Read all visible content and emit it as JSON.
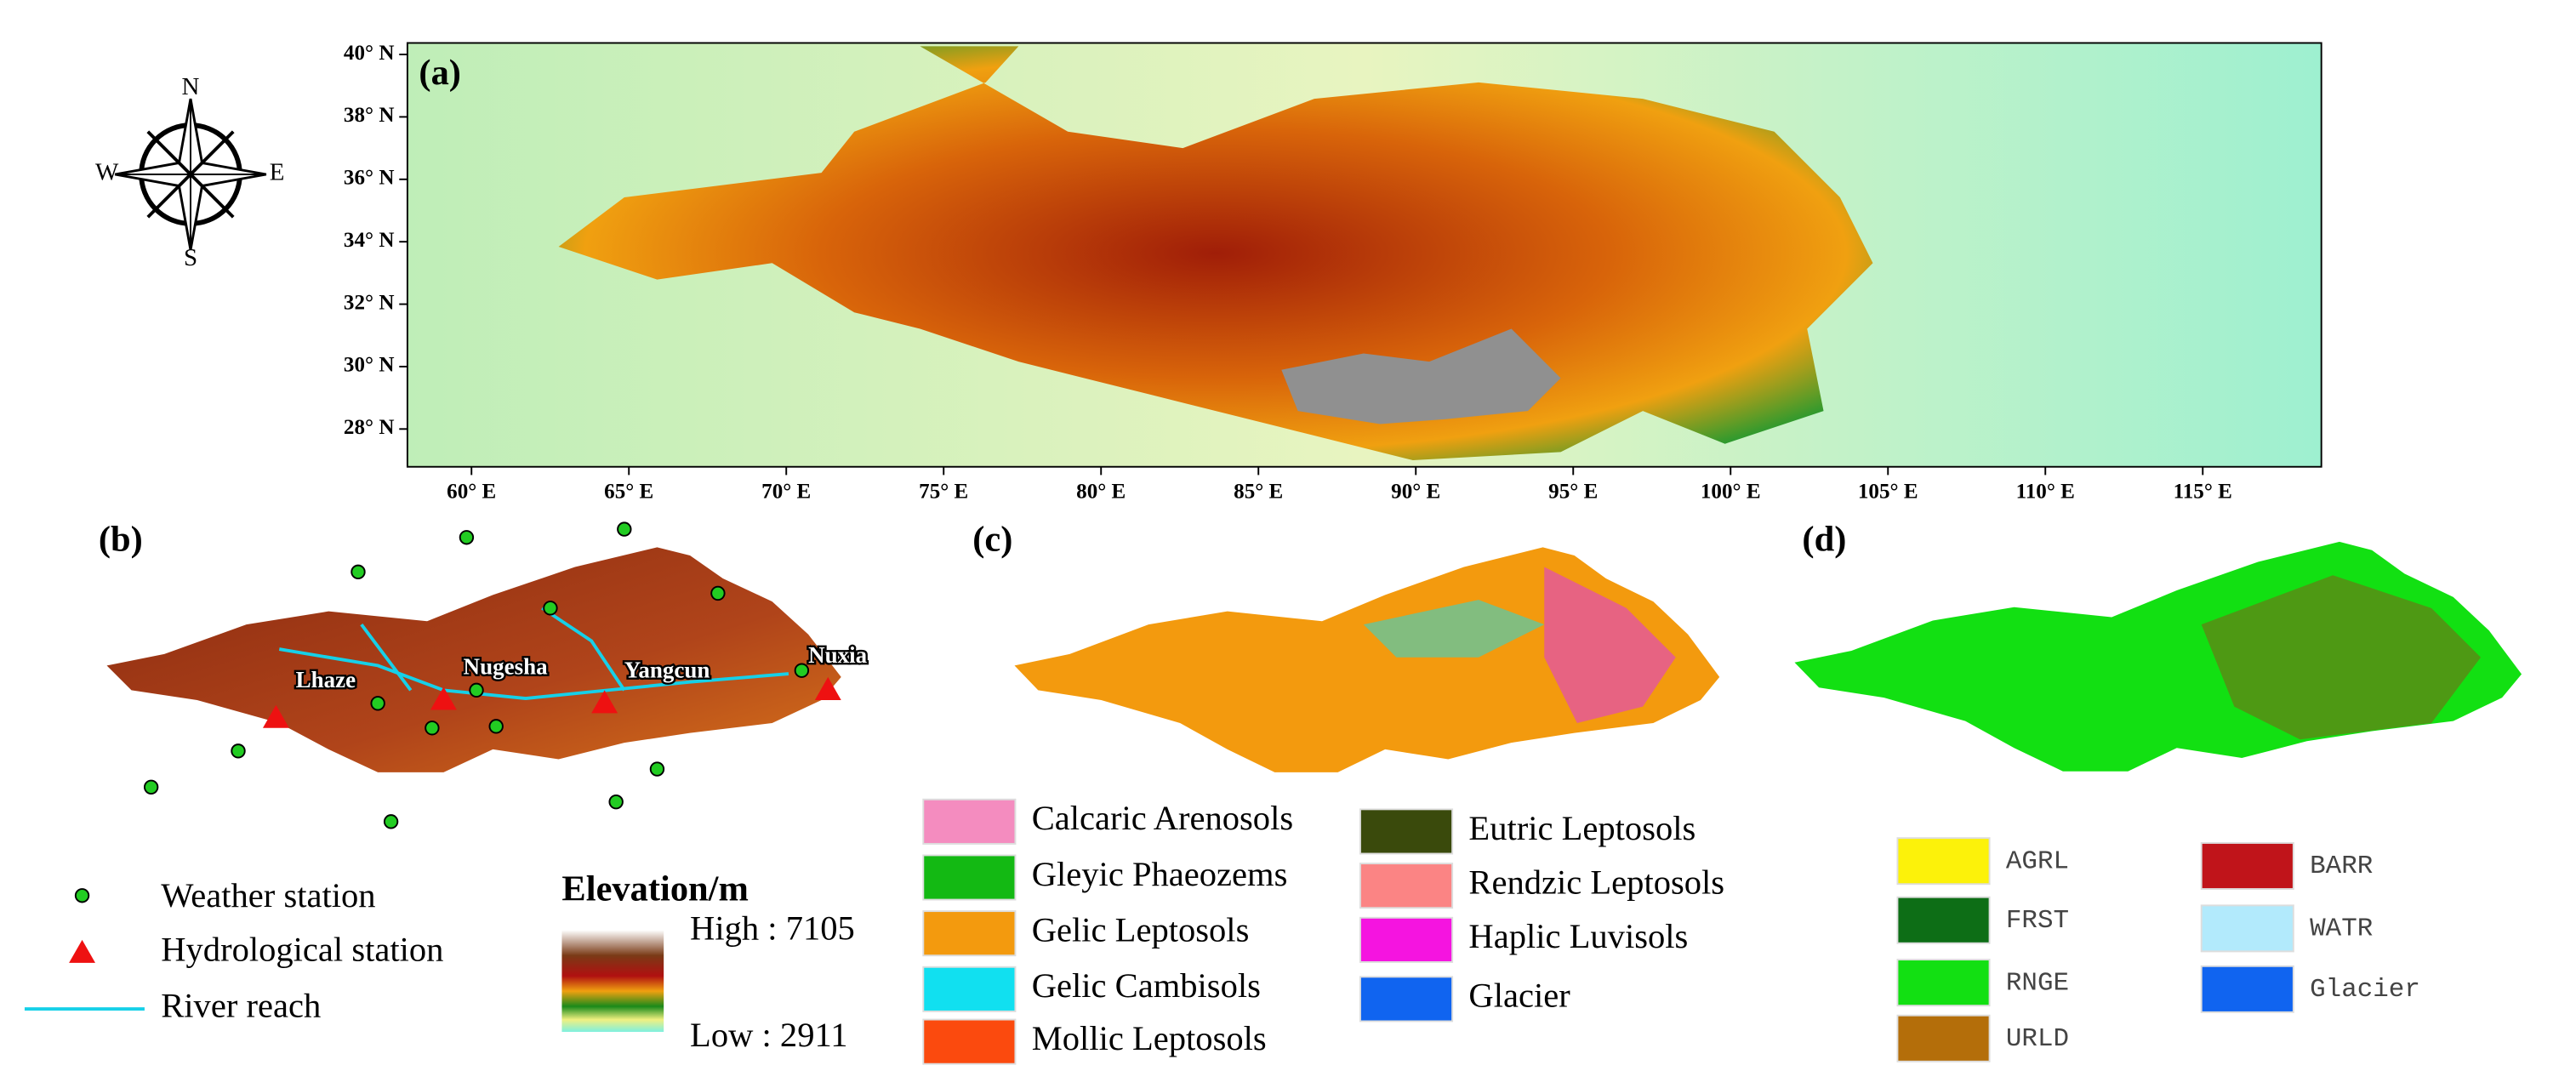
{
  "compass": {
    "n": "N",
    "s": "S",
    "e": "E",
    "w": "W"
  },
  "panel_a": {
    "label": "(a)",
    "lat_ticks": [
      "40° N",
      "38° N",
      "36° N",
      "34° N",
      "32° N",
      "30° N",
      "28° N"
    ],
    "lon_ticks": [
      "60° E",
      "65° E",
      "70° E",
      "75° E",
      "80° E",
      "85° E",
      "90° E",
      "95° E",
      "100° E",
      "105° E",
      "110° E",
      "115° E"
    ]
  },
  "panel_b": {
    "label": "(b)",
    "stations": [
      "Lhaze",
      "Nugesha",
      "Yangcun",
      "Nuxia"
    ],
    "legend": [
      "Weather station",
      "Hydrological station",
      "River reach"
    ],
    "elevation": {
      "title": "Elevation/m",
      "high": "High : 7105",
      "low": "Low : 2911"
    }
  },
  "panel_c": {
    "label": "(c)",
    "legend": [
      {
        "label": "Calcaric Arenosols",
        "color": "#f48cbf"
      },
      {
        "label": "Gleyic Phaeozems",
        "color": "#13b913"
      },
      {
        "label": "Gelic Leptosols",
        "color": "#f39a0e"
      },
      {
        "label": "Gelic Cambisols",
        "color": "#11e0f0"
      },
      {
        "label": "Mollic Leptosols",
        "color": "#fb4a0e"
      },
      {
        "label": "Eutric Leptosols",
        "color": "#3a4a0c"
      },
      {
        "label": "Rendzic Leptosols",
        "color": "#fb8484"
      },
      {
        "label": "Haplic Luvisols",
        "color": "#f514e0"
      },
      {
        "label": "Glacier",
        "color": "#1064f0"
      }
    ]
  },
  "panel_d": {
    "label": "(d)",
    "legend": [
      {
        "label": "AGRL",
        "color": "#fcf20a"
      },
      {
        "label": "FRST",
        "color": "#0d6e16"
      },
      {
        "label": "RNGE",
        "color": "#12e012"
      },
      {
        "label": "URLD",
        "color": "#b46e0a"
      },
      {
        "label": "BARR",
        "color": "#c0141a"
      },
      {
        "label": "WATR",
        "color": "#b2eafc"
      },
      {
        "label": "Glacier",
        "color": "#1064f0"
      }
    ]
  }
}
